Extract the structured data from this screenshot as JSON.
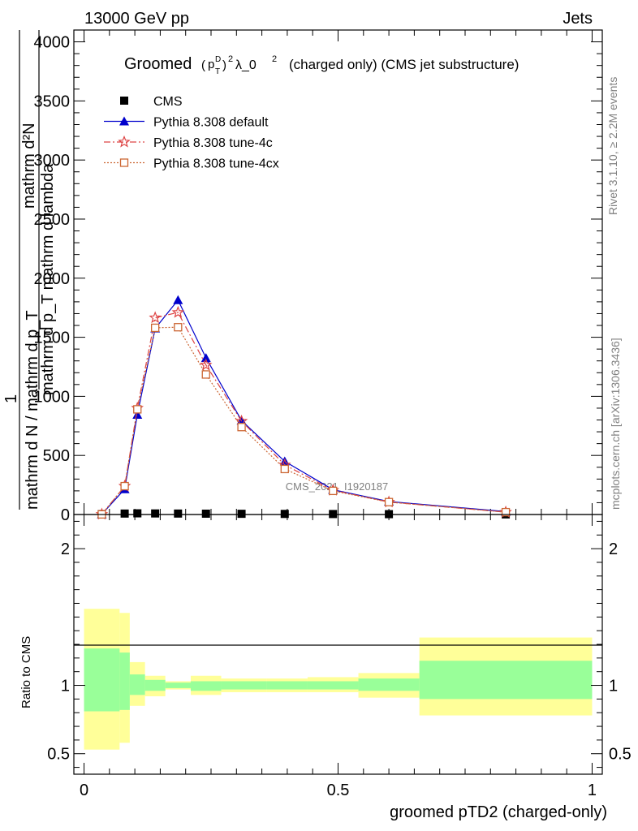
{
  "header": {
    "left": "13000 GeV pp",
    "right": "Jets"
  },
  "side_labels": {
    "rivet": "Rivet 3.1.10, ≥ 2.2M events",
    "mcplots": "mcplots.cern.ch [arXiv:1306.3436]"
  },
  "watermark": "CMS_2021_I1920187",
  "chart_data": [
    {
      "type": "line",
      "title": "Groomed (p_T^D)^2 λ_0^2  (charged only) (CMS jet substructure)",
      "title_parts": {
        "prefix": "Groomed",
        "sup_D": "D",
        "sub_T": "T",
        "p": "p",
        "exp2": "2",
        "lambda": "λ_0",
        "exp2b": "2",
        "suffix": "(charged only) (CMS jet substructure)"
      },
      "ylabel_parts": {
        "top": "mathrm d²N",
        "bottom": "mathrm d p_T mathrm d lambda",
        "outer_num": "1",
        "outer_den": "mathrm d N / mathrm d p_T"
      },
      "ylim": [
        0,
        4100
      ],
      "yticks": [
        0,
        500,
        1000,
        1500,
        2000,
        2500,
        3000,
        3500,
        4000
      ],
      "ytick_labels": [
        "0",
        "500",
        "1000",
        "1500",
        "2000",
        "2500",
        "3000",
        "3500",
        "4000"
      ],
      "xlim": [
        -0.02,
        1.02
      ],
      "legend_position": "top-left",
      "series": [
        {
          "name": "CMS",
          "color": "#000000",
          "marker": "square",
          "x": [
            0.035,
            0.08,
            0.105,
            0.14,
            0.185,
            0.24,
            0.31,
            0.395,
            0.49,
            0.6,
            0.83
          ],
          "y": [
            3,
            8,
            10,
            9,
            8,
            7,
            6,
            5,
            4,
            3,
            1
          ]
        },
        {
          "name": "Pythia 8.308 default",
          "color": "#0000cc",
          "marker": "triangle",
          "x": [
            0.035,
            0.08,
            0.105,
            0.14,
            0.185,
            0.24,
            0.31,
            0.395,
            0.49,
            0.6,
            0.83
          ],
          "y": [
            2,
            215,
            845,
            1575,
            1815,
            1325,
            795,
            450,
            210,
            110,
            25
          ]
        },
        {
          "name": "Pythia 8.308 tune-4c",
          "color": "#dd4444",
          "marker": "star",
          "x": [
            0.035,
            0.08,
            0.105,
            0.14,
            0.185,
            0.24,
            0.31,
            0.395,
            0.49,
            0.6,
            0.83
          ],
          "y": [
            2,
            240,
            900,
            1665,
            1710,
            1265,
            790,
            420,
            205,
            105,
            20
          ]
        },
        {
          "name": "Pythia 8.308 tune-4cx",
          "color": "#cc6633",
          "marker": "open-square",
          "x": [
            0.035,
            0.08,
            0.105,
            0.14,
            0.185,
            0.24,
            0.31,
            0.395,
            0.49,
            0.6,
            0.83
          ],
          "y": [
            1,
            240,
            890,
            1580,
            1585,
            1185,
            740,
            385,
            200,
            105,
            20
          ]
        }
      ]
    },
    {
      "type": "area",
      "ylabel": "Ratio to CMS",
      "xlabel": "groomed pTD2 (charged-only)",
      "ylim": [
        0.35,
        2.25
      ],
      "yticks": [
        0.5,
        1,
        2
      ],
      "ytick_labels": [
        "0.5",
        "1",
        "2"
      ],
      "xticks": [
        0,
        0.5,
        1
      ],
      "xtick_labels": [
        "0",
        "0.5",
        "1"
      ],
      "xlim": [
        -0.02,
        1.02
      ],
      "bands": {
        "bin_edges": [
          0.0,
          0.07,
          0.09,
          0.12,
          0.16,
          0.21,
          0.27,
          0.36,
          0.44,
          0.54,
          0.66,
          1.0
        ],
        "yellow": {
          "color": "#ffff99",
          "lo": [
            0.53,
            0.58,
            0.85,
            0.92,
            0.97,
            0.93,
            0.95,
            0.95,
            0.95,
            0.91,
            0.78
          ],
          "hi": [
            1.56,
            1.53,
            1.17,
            1.07,
            1.03,
            1.07,
            1.05,
            1.05,
            1.06,
            1.09,
            1.35
          ]
        },
        "green": {
          "color": "#99ff99",
          "lo": [
            0.81,
            0.82,
            0.93,
            0.96,
            0.98,
            0.96,
            0.97,
            0.97,
            0.97,
            0.96,
            0.9
          ],
          "hi": [
            1.27,
            1.24,
            1.08,
            1.04,
            1.02,
            1.03,
            1.03,
            1.03,
            1.03,
            1.05,
            1.18
          ]
        }
      },
      "reference_line": 1
    }
  ]
}
